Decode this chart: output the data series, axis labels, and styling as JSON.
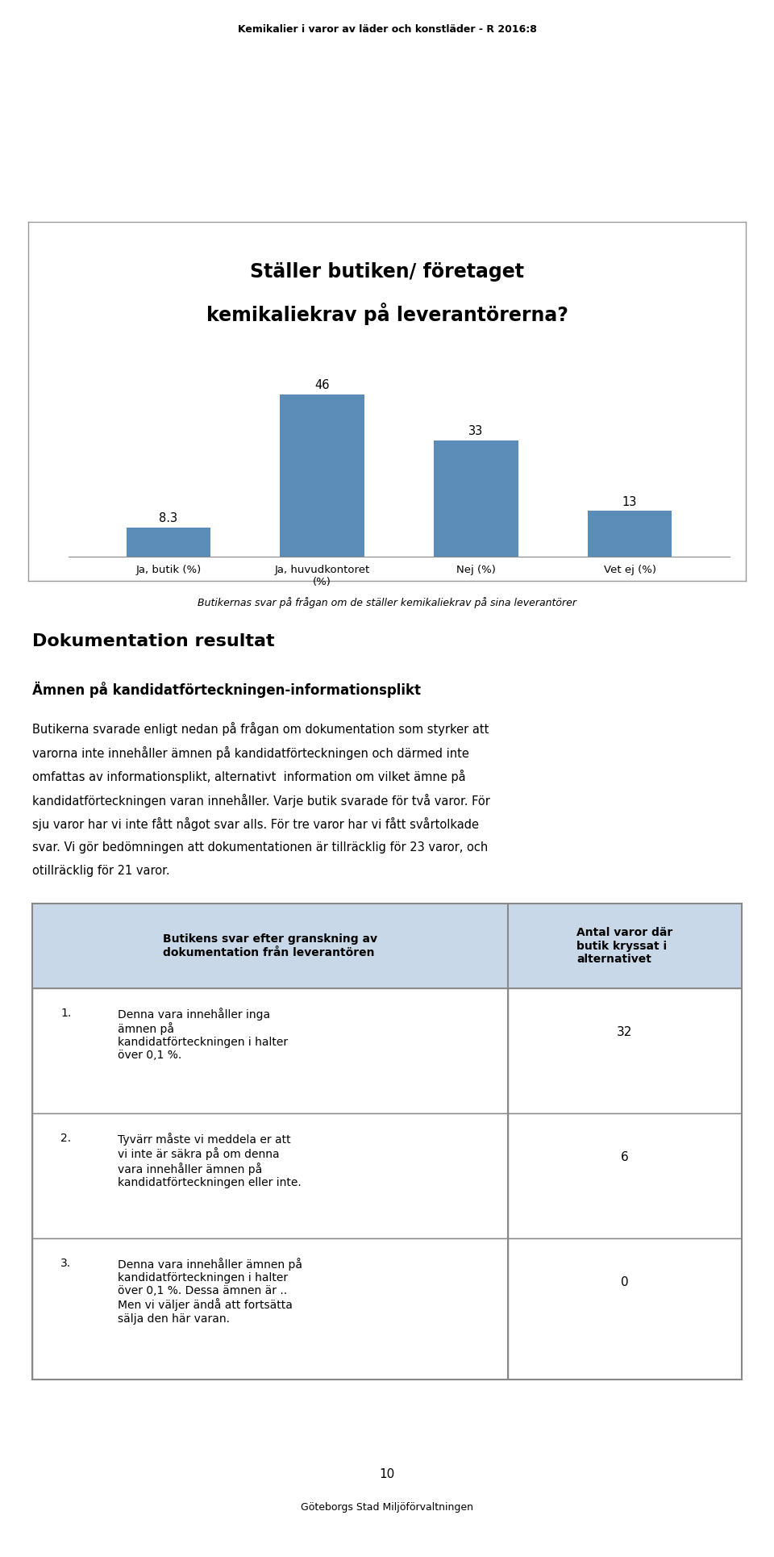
{
  "page_header": "Kemikalier i varor av läder och konstläder - R 2016:8",
  "page_footer_number": "10",
  "page_footer_text": "Göteborgs Stad Miljöförvaltningen",
  "chart_title_line1": "Ställer butiken/ företaget",
  "chart_title_line2": "kemikaliekrav på leverantörerna?",
  "bar_categories": [
    "Ja, butik (%)",
    "Ja, huvudkontoret\n(%)",
    "Nej (%)",
    "Vet ej (%)"
  ],
  "bar_values": [
    8.3,
    46,
    33,
    13
  ],
  "bar_color": "#5B8DB8",
  "chart_caption": "Butikernas svar på frågan om de ställer kemikaliekrav på sina leverantörer",
  "section_title": "Dokumentation resultat",
  "section_subtitle": "Ämnen på kandidatförteckningen-informationsplikt",
  "body_text_lines": [
    "Butikerna svarade enligt nedan på frågan om dokumentation som styrker att",
    "varorna inte innehåller ämnen på kandidatförteckningen och därmed inte",
    "omfattas av informationsplikt, alternativt  information om vilket ämne på",
    "kandidatförteckningen varan innehåller. Varje butik svarade för två varor. För",
    "sju varor har vi inte fått något svar alls. För tre varor har vi fått svårtolkade",
    "svar. Vi gör bedömningen att dokumentationen är tillräcklig för 23 varor, och",
    "otillräcklig för 21 varor."
  ],
  "table_col1_header": "Butikens svar efter granskning av\ndokumentation från leverantören",
  "table_col2_header": "Antal varor där\nbutik kryssat i\nalternativet",
  "table_rows": [
    {
      "num": "1.",
      "left": "Denna vara innehåller inga\nämnen på\nkandidatförteckningen i halter\növer 0,1 %.",
      "right": "32"
    },
    {
      "num": "2.",
      "left": "Tyvärr måste vi meddela er att\nvi inte är säkra på om denna\nvara innehåller ämnen på\nkandidatförteckningen eller inte.",
      "right": "6"
    },
    {
      "num": "3.",
      "left": "Denna vara innehåller ämnen på\nkandidatförteckningen i halter\növer 0,1 %. Dessa ämnen är ..\nMen vi väljer ändå att fortsätta\nsälja den här varan.",
      "right": "0"
    }
  ],
  "background_color": "#FFFFFF",
  "box_border": "#999999",
  "table_header_bg": "#C8D8E8",
  "table_border": "#888888"
}
